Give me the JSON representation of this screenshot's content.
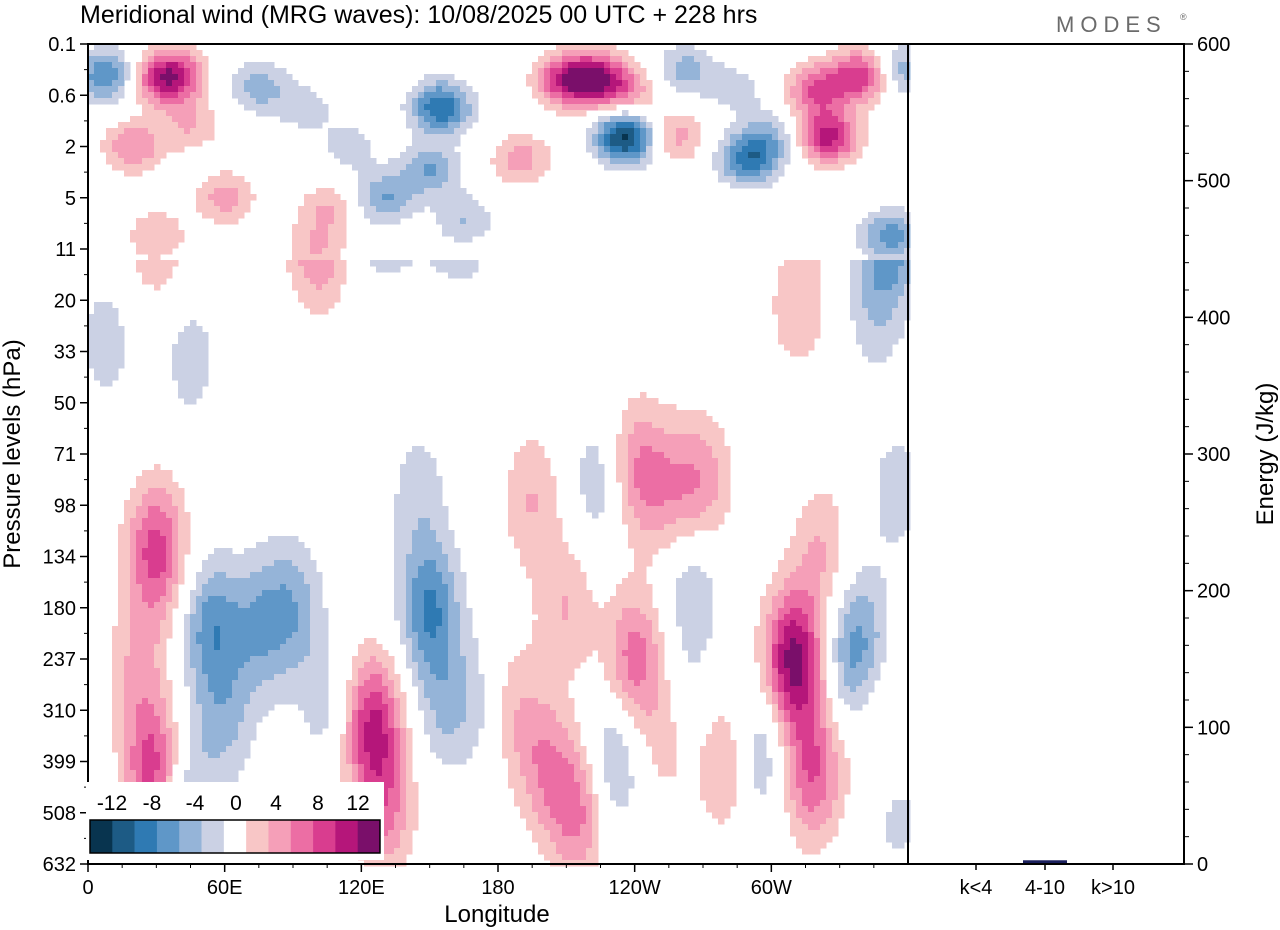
{
  "title": "Meridional wind (MRG waves):  10/08/2025  00 UTC  + 228 hrs",
  "brand": "MODES",
  "brand_mark": "®",
  "colors": {
    "neg": [
      "#08344f",
      "#1d5b85",
      "#2f7ab3",
      "#5f97c8",
      "#95b4d8",
      "#cbd1e4"
    ],
    "pos": [
      "#f8c6c6",
      "#f59fb8",
      "#ec6ea4",
      "#d93d8f",
      "#b5167a",
      "#7a0f6a"
    ],
    "bar": "#1a1f5c"
  },
  "chart_data": [
    {
      "type": "heatmap",
      "title": "Meridional wind (MRG waves)",
      "xlabel": "Longitude",
      "ylabel": "Pressure levels (hPa)",
      "x_ticks": [
        "0",
        "60E",
        "120E",
        "180",
        "120W",
        "60W"
      ],
      "y_ticks": [
        "0.1",
        "0.6",
        "2",
        "5",
        "11",
        "20",
        "33",
        "50",
        "71",
        "98",
        "134",
        "180",
        "237",
        "310",
        "399",
        "508",
        "632"
      ],
      "colorbar": {
        "labels": [
          "-12",
          "-8",
          "-4",
          "0",
          "4",
          "8",
          "12"
        ],
        "levels": [
          -14,
          -12,
          -10,
          -8,
          -6,
          -4,
          -2,
          2,
          4,
          6,
          8,
          10,
          12,
          14
        ]
      },
      "features": [
        {
          "lon": 8,
          "p": 0.3,
          "v": -8
        },
        {
          "lon": 20,
          "p": 2.0,
          "v": 6
        },
        {
          "lon": 30,
          "p": 0.35,
          "v": 5
        },
        {
          "lon": 38,
          "p": 0.3,
          "v": 9
        },
        {
          "lon": 45,
          "p": 1.2,
          "v": 4
        },
        {
          "lon": 60,
          "p": 5,
          "v": 5
        },
        {
          "lon": 75,
          "p": 0.45,
          "v": -5
        },
        {
          "lon": 95,
          "p": 0.8,
          "v": -3
        },
        {
          "lon": 100,
          "p": 11,
          "v": 4
        },
        {
          "lon": 105,
          "p": 6,
          "v": 4
        },
        {
          "lon": 115,
          "p": 2,
          "v": -3
        },
        {
          "lon": 130,
          "p": 5,
          "v": -6
        },
        {
          "lon": 155,
          "p": 0.8,
          "v": -10
        },
        {
          "lon": 150,
          "p": 3,
          "v": -6
        },
        {
          "lon": 165,
          "p": 7,
          "v": -4
        },
        {
          "lon": 190,
          "p": 2.5,
          "v": 5
        },
        {
          "lon": 210,
          "p": 0.35,
          "v": 10
        },
        {
          "lon": 225,
          "p": 0.35,
          "v": 11
        },
        {
          "lon": 236,
          "p": 1.6,
          "v": -13
        },
        {
          "lon": 240,
          "p": 0.6,
          "v": 4
        },
        {
          "lon": 258,
          "p": 1.6,
          "v": 5
        },
        {
          "lon": 262,
          "p": 0.25,
          "v": -5
        },
        {
          "lon": 285,
          "p": 0.5,
          "v": -3
        },
        {
          "lon": 290,
          "p": 2.5,
          "v": -9
        },
        {
          "lon": 300,
          "p": 1.6,
          "v": -4
        },
        {
          "lon": 312,
          "p": 20,
          "v": 4
        },
        {
          "lon": 320,
          "p": 0.5,
          "v": 8
        },
        {
          "lon": 325,
          "p": 1.6,
          "v": 11
        },
        {
          "lon": 340,
          "p": 0.3,
          "v": 10
        },
        {
          "lon": 352,
          "p": 9,
          "v": -7
        },
        {
          "lon": 356,
          "p": 0.25,
          "v": -6
        },
        {
          "lon": 8,
          "p": 30,
          "v": -3
        },
        {
          "lon": 45,
          "p": 35,
          "v": -3
        },
        {
          "lon": 30,
          "p": 9,
          "v": 4
        },
        {
          "lon": 255,
          "p": 90,
          "v": 4
        },
        {
          "lon": 240,
          "p": 78,
          "v": 6
        },
        {
          "lon": 270,
          "p": 85,
          "v": 5
        },
        {
          "lon": 225,
          "p": 85,
          "v": -4
        },
        {
          "lon": 145,
          "p": 90,
          "v": -3
        },
        {
          "lon": 195,
          "p": 95,
          "v": 4
        },
        {
          "lon": 345,
          "p": 22,
          "v": -3
        },
        {
          "lon": 355,
          "p": 90,
          "v": -3
        },
        {
          "lon": 30,
          "p": 130,
          "v": 9
        },
        {
          "lon": 22,
          "p": 250,
          "v": 4
        },
        {
          "lon": 30,
          "p": 420,
          "v": 11
        },
        {
          "lon": 40,
          "p": 450,
          "v": -6
        },
        {
          "lon": 54,
          "p": 200,
          "v": -7
        },
        {
          "lon": 60,
          "p": 330,
          "v": -4
        },
        {
          "lon": 75,
          "p": 200,
          "v": -5
        },
        {
          "lon": 90,
          "p": 180,
          "v": -5
        },
        {
          "lon": 105,
          "p": 300,
          "v": -3
        },
        {
          "lon": 125,
          "p": 330,
          "v": 10
        },
        {
          "lon": 130,
          "p": 500,
          "v": 6
        },
        {
          "lon": 150,
          "p": 180,
          "v": -8
        },
        {
          "lon": 157,
          "p": 300,
          "v": -4
        },
        {
          "lon": 175,
          "p": 300,
          "v": -3
        },
        {
          "lon": 185,
          "p": 300,
          "v": 4
        },
        {
          "lon": 200,
          "p": 400,
          "v": 5
        },
        {
          "lon": 210,
          "p": 180,
          "v": 4
        },
        {
          "lon": 215,
          "p": 500,
          "v": 7
        },
        {
          "lon": 230,
          "p": 400,
          "v": -5
        },
        {
          "lon": 240,
          "p": 237,
          "v": 7
        },
        {
          "lon": 255,
          "p": 350,
          "v": 4
        },
        {
          "lon": 262,
          "p": 310,
          "v": -3
        },
        {
          "lon": 265,
          "p": 160,
          "v": -4
        },
        {
          "lon": 280,
          "p": 400,
          "v": 5
        },
        {
          "lon": 295,
          "p": 380,
          "v": -5
        },
        {
          "lon": 310,
          "p": 240,
          "v": 13
        },
        {
          "lon": 318,
          "p": 420,
          "v": 8
        },
        {
          "lon": 322,
          "p": 130,
          "v": 4
        },
        {
          "lon": 335,
          "p": 240,
          "v": -5
        },
        {
          "lon": 340,
          "p": 200,
          "v": -3
        },
        {
          "lon": 348,
          "p": 350,
          "v": 3
        },
        {
          "lon": 355,
          "p": 500,
          "v": -3
        }
      ]
    },
    {
      "type": "bar",
      "ylabel": "Energy (J/kg)",
      "categories": [
        "k<4",
        "4-10",
        "k>10"
      ],
      "values": [
        0,
        2,
        0
      ],
      "ylim": [
        0,
        600
      ],
      "y_ticks": [
        "0",
        "100",
        "200",
        "300",
        "400",
        "500",
        "600"
      ]
    }
  ]
}
